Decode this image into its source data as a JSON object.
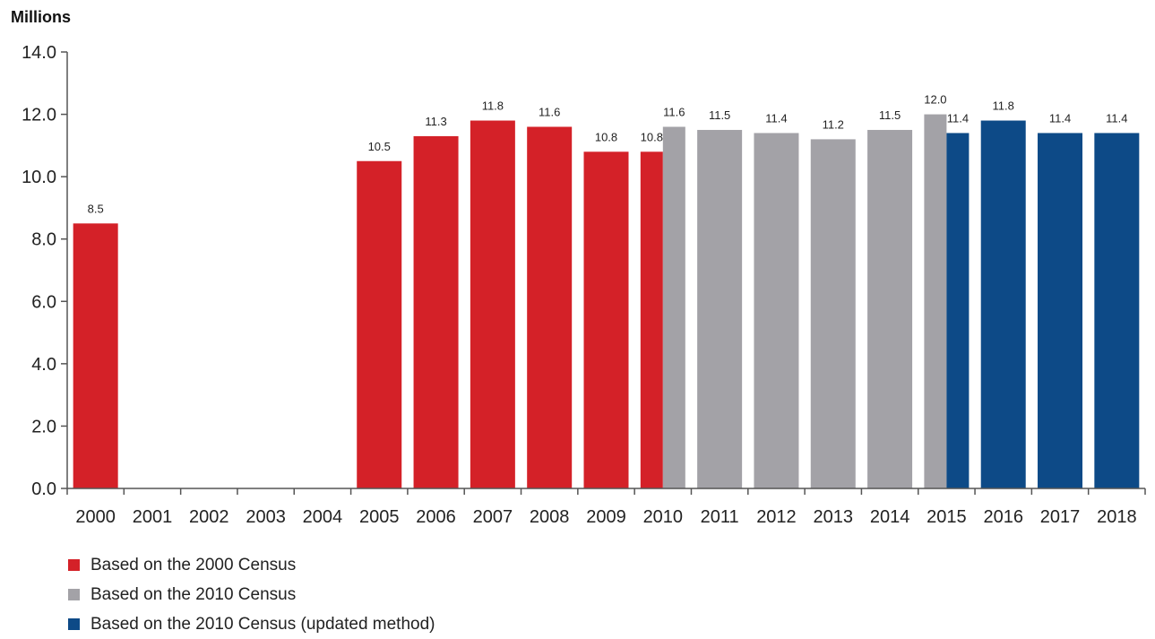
{
  "chart_data": {
    "type": "bar",
    "ylabel": "Millions",
    "ylim": [
      0,
      14
    ],
    "yticks": [
      "0.0",
      "2.0",
      "4.0",
      "6.0",
      "8.0",
      "10.0",
      "12.0",
      "14.0"
    ],
    "categories": [
      "2000",
      "2001",
      "2002",
      "2003",
      "2004",
      "2005",
      "2006",
      "2007",
      "2008",
      "2009",
      "2010",
      "2011",
      "2012",
      "2013",
      "2014",
      "2015",
      "2016",
      "2017",
      "2018"
    ],
    "series": [
      {
        "name": "Based on the 2000 Census",
        "color": "#d42128",
        "values": [
          8.5,
          null,
          null,
          null,
          null,
          10.5,
          11.3,
          11.8,
          11.6,
          10.8,
          10.8,
          null,
          null,
          null,
          null,
          null,
          null,
          null,
          null
        ],
        "labels": [
          "8.5",
          "",
          "",
          "",
          "",
          "10.5",
          "11.3",
          "11.8",
          "11.6",
          "10.8",
          "10.8",
          "",
          "",
          "",
          "",
          "",
          "",
          "",
          ""
        ]
      },
      {
        "name": "Based on the 2010 Census",
        "color": "#a3a2a7",
        "values": [
          null,
          null,
          null,
          null,
          null,
          null,
          null,
          null,
          null,
          null,
          11.6,
          11.5,
          11.4,
          11.2,
          11.5,
          12.0,
          null,
          null,
          null
        ],
        "labels": [
          "",
          "",
          "",
          "",
          "",
          "",
          "",
          "",
          "",
          "",
          "11.6",
          "11.5",
          "11.4",
          "11.2",
          "11.5",
          "12.0",
          "",
          "",
          ""
        ]
      },
      {
        "name": "Based on the 2010 Census (updated method)",
        "color": "#0d4a87",
        "values": [
          null,
          null,
          null,
          null,
          null,
          null,
          null,
          null,
          null,
          null,
          null,
          null,
          null,
          null,
          null,
          11.4,
          11.8,
          11.4,
          11.4
        ],
        "labels": [
          "",
          "",
          "",
          "",
          "",
          "",
          "",
          "",
          "",
          "",
          "",
          "",
          "",
          "",
          "",
          "11.4",
          "11.8",
          "11.4",
          "11.4"
        ]
      }
    ],
    "grid": false,
    "legend_position": "bottom-left"
  }
}
